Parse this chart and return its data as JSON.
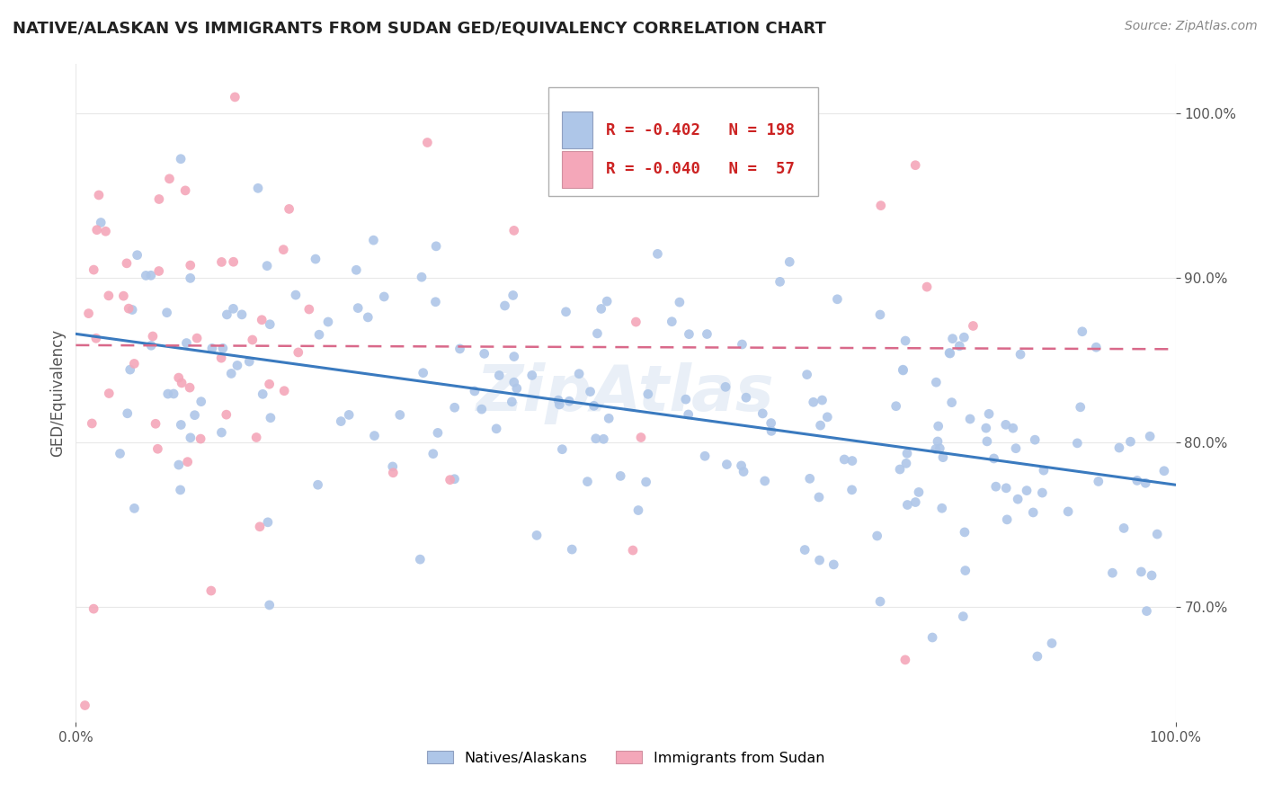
{
  "title": "NATIVE/ALASKAN VS IMMIGRANTS FROM SUDAN GED/EQUIVALENCY CORRELATION CHART",
  "source": "Source: ZipAtlas.com",
  "ylabel": "GED/Equivalency",
  "xlim": [
    0.0,
    1.0
  ],
  "ylim": [
    0.63,
    1.03
  ],
  "xtick_labels": [
    "0.0%",
    "100.0%"
  ],
  "ytick_values": [
    0.7,
    0.8,
    0.9,
    1.0
  ],
  "ytick_labels": [
    "70.0%",
    "80.0%",
    "90.0%",
    "100.0%"
  ],
  "native_R": -0.402,
  "native_N": 198,
  "sudan_R": -0.04,
  "sudan_N": 57,
  "native_color": "#aec6e8",
  "sudan_color": "#f4a7b9",
  "native_line_color": "#3a7abf",
  "sudan_line_color": "#d9698a",
  "background_color": "#ffffff",
  "grid_color": "#e8e8e8",
  "title_color": "#222222",
  "source_color": "#888888",
  "legend_text_color": "#cc2222",
  "watermark": "ZipAtlas",
  "watermark_color": "#c8d8ec",
  "legend_native_text": "R = -0.402   N = 198",
  "legend_sudan_text": "R = -0.040   N =  57"
}
